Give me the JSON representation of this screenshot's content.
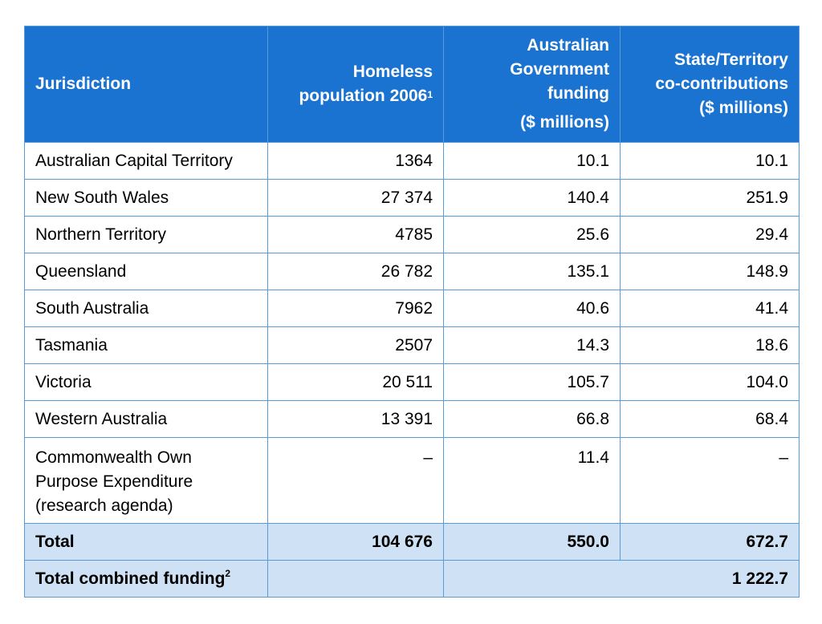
{
  "table": {
    "headers": {
      "jurisdiction": "Jurisdiction",
      "homeless_line1": "Homeless",
      "homeless_line2": "population 2006",
      "homeless_sup": "1",
      "aus_line1": "Australian",
      "aus_line2": "Government",
      "aus_line3": "funding",
      "aus_line4": "($ millions)",
      "state_line1": "State/Territory",
      "state_line2": "co-contributions",
      "state_line3": "($ millions)"
    },
    "rows": [
      {
        "jurisdiction": "Australian Capital Territory",
        "homeless": "1364",
        "aus": "10.1",
        "state": "10.1"
      },
      {
        "jurisdiction": "New South Wales",
        "homeless": "27 374",
        "aus": "140.4",
        "state": "251.9"
      },
      {
        "jurisdiction": "Northern Territory",
        "homeless": "4785",
        "aus": "25.6",
        "state": "29.4"
      },
      {
        "jurisdiction": "Queensland",
        "homeless": "26 782",
        "aus": "135.1",
        "state": "148.9"
      },
      {
        "jurisdiction": "South Australia",
        "homeless": "7962",
        "aus": "40.6",
        "state": "41.4"
      },
      {
        "jurisdiction": "Tasmania",
        "homeless": "2507",
        "aus": "14.3",
        "state": "18.6"
      },
      {
        "jurisdiction": "Victoria",
        "homeless": "20 511",
        "aus": "105.7",
        "state": "104.0"
      },
      {
        "jurisdiction": "Western Australia",
        "homeless": "13 391",
        "aus": "66.8",
        "state": "68.4"
      }
    ],
    "commonwealth": {
      "line1": "Commonwealth Own",
      "line2": "Purpose Expenditure",
      "line3": "(research agenda)",
      "homeless": "–",
      "aus": "11.4",
      "state": "–"
    },
    "total": {
      "label": "Total",
      "homeless": "104 676",
      "aus": "550.0",
      "state": "672.7"
    },
    "combined": {
      "label": "Total combined funding",
      "sup": "2",
      "value": "1 222.7"
    }
  },
  "colors": {
    "header_bg": "#1a73d1",
    "total_bg": "#cfe2f5",
    "border": "#5b9bd5"
  }
}
